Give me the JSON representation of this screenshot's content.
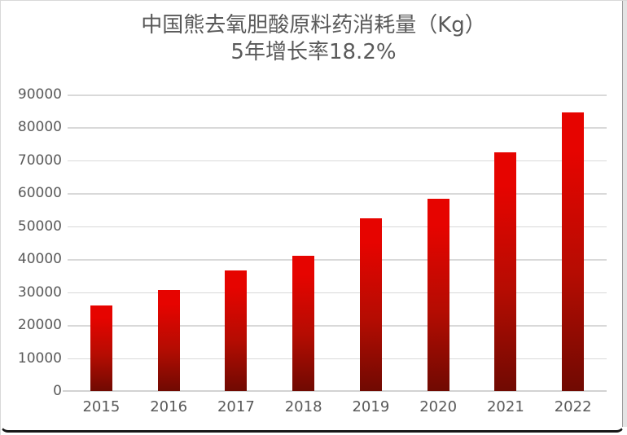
{
  "window": {
    "background": "#ffffff",
    "frame_border_color": "#d9d9d9",
    "right_edge_line": "#9a9a9a",
    "right_edge_fill": "#e4e4e4",
    "bottom_border_color": "#161616"
  },
  "chart_data": {
    "type": "bar",
    "title": "中国熊去氧胆酸原料药消耗量（Kg）",
    "subtitle": "5年增长率18.2%",
    "categories": [
      "2015",
      "2016",
      "2017",
      "2018",
      "2019",
      "2020",
      "2021",
      "2022"
    ],
    "values": [
      26000,
      30700,
      36700,
      41000,
      52500,
      58300,
      72500,
      84600
    ],
    "ylim": [
      0,
      90000
    ],
    "ytick_step": 10000,
    "ytick_labels": [
      "0",
      "10000",
      "20000",
      "30000",
      "40000",
      "50000",
      "60000",
      "70000",
      "80000",
      "90000"
    ],
    "grid": true,
    "legend_position": "none",
    "colors": {
      "bar_top": "#e60400",
      "bar_mid": "#b50c02",
      "bar_bottom": "#700a02",
      "text": "#595959",
      "gridline": "#d9d9d9",
      "axis_line": "#d2d2d2"
    }
  }
}
